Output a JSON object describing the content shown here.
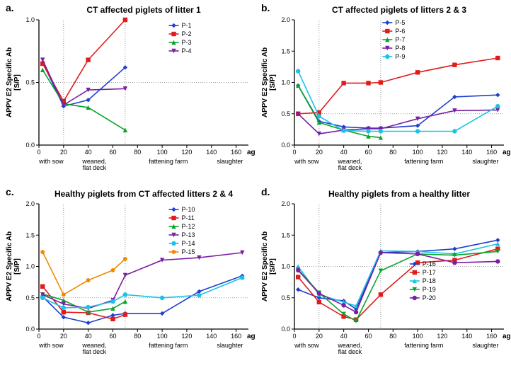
{
  "global": {
    "ylabel": "APPV E2 Specific Ab\n[S/P]",
    "xlabel": "age [days]",
    "phases": [
      "with sow",
      "weaned,\nflat deck",
      "fattening farm",
      "slaughter"
    ],
    "phase_boundaries": [
      20,
      70
    ],
    "xlim": [
      0,
      170
    ],
    "xtick_step": 20,
    "background_color": "#ffffff",
    "axis_color": "#000000",
    "grid_color": "#808080",
    "grid_dash": "1 2",
    "line_width": 1.6,
    "marker_size": 3.2,
    "axis_fontsize": 10,
    "title_fontsize": 12,
    "tick_fontsize": 9,
    "legend_fontsize": 9
  },
  "panels": {
    "a": {
      "label": "a.",
      "title": "CT affected piglets of litter 1",
      "ylim": [
        0,
        1.0
      ],
      "ytick_step": 0.5,
      "href": 0.5,
      "x": [
        3,
        20,
        40,
        70
      ],
      "series": [
        {
          "name": "P-1",
          "color": "#1f3fcf",
          "marker": "diamond",
          "y": [
            0.66,
            0.31,
            0.36,
            0.62
          ]
        },
        {
          "name": "P-2",
          "color": "#e11b1b",
          "marker": "square",
          "y": [
            0.65,
            0.35,
            0.68,
            1.0
          ]
        },
        {
          "name": "P-3",
          "color": "#0aa32a",
          "marker": "triangle",
          "y": [
            0.6,
            0.33,
            0.3,
            0.12
          ]
        },
        {
          "name": "P-4",
          "color": "#7a1fa2",
          "marker": "invtri",
          "y": [
            0.68,
            0.32,
            0.44,
            0.45
          ]
        }
      ],
      "legend_pos": "right-inset"
    },
    "b": {
      "label": "b.",
      "title": "CT affected piglets of litters 2 & 3",
      "ylim": [
        0,
        2.0
      ],
      "ytick_step": 0.5,
      "href": 0.5,
      "x": [
        3,
        20,
        40,
        60,
        70,
        100,
        130,
        165
      ],
      "series": [
        {
          "name": "P-5",
          "color": "#1f3fcf",
          "marker": "diamond",
          "y": [
            0.95,
            0.38,
            0.29,
            0.27,
            0.27,
            0.31,
            0.77,
            0.8
          ]
        },
        {
          "name": "P-6",
          "color": "#e11b1b",
          "marker": "square",
          "y": [
            0.5,
            0.52,
            0.99,
            0.99,
            1.0,
            1.16,
            1.28,
            1.39
          ]
        },
        {
          "name": "P-7",
          "color": "#0aa32a",
          "marker": "triangle",
          "y": [
            0.95,
            0.36,
            0.24,
            0.14,
            0.12,
            null,
            null,
            null
          ]
        },
        {
          "name": "P-8",
          "color": "#7a1fa2",
          "marker": "invtri",
          "y": [
            0.5,
            0.18,
            0.24,
            0.26,
            0.26,
            0.42,
            0.55,
            0.56
          ]
        },
        {
          "name": "P-9",
          "color": "#19c3e6",
          "marker": "circle",
          "y": [
            1.18,
            0.46,
            0.23,
            0.22,
            0.22,
            0.22,
            0.22,
            0.62
          ]
        }
      ],
      "legend_pos": "top-inset"
    },
    "c": {
      "label": "c.",
      "title": "Healthy piglets from CT affected litters 2 & 4",
      "ylim": [
        0,
        2.0
      ],
      "ytick_step": 0.5,
      "href": 0.5,
      "x": [
        3,
        20,
        40,
        60,
        70,
        100,
        130,
        165
      ],
      "series": [
        {
          "name": "P-10",
          "color": "#1f3fcf",
          "marker": "diamond",
          "y": [
            0.52,
            0.19,
            0.1,
            0.22,
            0.25,
            0.25,
            0.6,
            0.85
          ]
        },
        {
          "name": "P-11",
          "color": "#e11b1b",
          "marker": "square",
          "y": [
            0.68,
            0.27,
            0.26,
            0.16,
            0.23,
            null,
            null,
            null
          ]
        },
        {
          "name": "P-12",
          "color": "#0aa32a",
          "marker": "triangle",
          "y": [
            0.56,
            0.46,
            0.27,
            0.33,
            0.44,
            null,
            null,
            null
          ]
        },
        {
          "name": "P-13",
          "color": "#7a1fa2",
          "marker": "invtri",
          "y": [
            0.55,
            0.4,
            0.33,
            0.46,
            0.86,
            1.1,
            1.14,
            1.22
          ]
        },
        {
          "name": "P-14",
          "color": "#19c3e6",
          "marker": "circle",
          "y": [
            0.5,
            0.34,
            0.35,
            0.44,
            0.55,
            0.5,
            0.54,
            0.82
          ]
        },
        {
          "name": "P-15",
          "color": "#f08a00",
          "marker": "hex",
          "y": [
            1.23,
            0.55,
            0.78,
            0.94,
            1.12,
            null,
            null,
            null
          ]
        }
      ],
      "legend_pos": "right-inset"
    },
    "d": {
      "label": "d.",
      "title": "Healthy piglets from a healthy litter",
      "ylim": [
        0,
        2.0
      ],
      "ytick_step": 0.5,
      "href": 1.0,
      "x": [
        3,
        20,
        40,
        50,
        70,
        100,
        130,
        165
      ],
      "series": [
        {
          "name": "P-16",
          "color": "#1f3fcf",
          "marker": "diamond",
          "y": [
            0.63,
            0.5,
            0.45,
            0.32,
            1.22,
            1.24,
            1.28,
            1.42
          ]
        },
        {
          "name": "P-17",
          "color": "#e11b1b",
          "marker": "square",
          "y": [
            0.83,
            0.43,
            0.2,
            0.15,
            0.55,
            1.06,
            1.1,
            1.28
          ]
        },
        {
          "name": "P-18",
          "color": "#19c3e6",
          "marker": "triangle",
          "y": [
            1.0,
            0.55,
            0.43,
            0.37,
            1.25,
            1.24,
            1.2,
            1.36
          ]
        },
        {
          "name": "P-19",
          "color": "#0aa32a",
          "marker": "invtri",
          "y": [
            0.95,
            0.58,
            0.24,
            0.13,
            0.93,
            1.2,
            1.18,
            1.24
          ]
        },
        {
          "name": "P-20",
          "color": "#7a1fa2",
          "marker": "circle",
          "y": [
            0.94,
            0.57,
            0.38,
            0.27,
            1.22,
            1.2,
            1.06,
            1.08
          ]
        }
      ],
      "legend_pos": "bottom-right-inset"
    }
  }
}
